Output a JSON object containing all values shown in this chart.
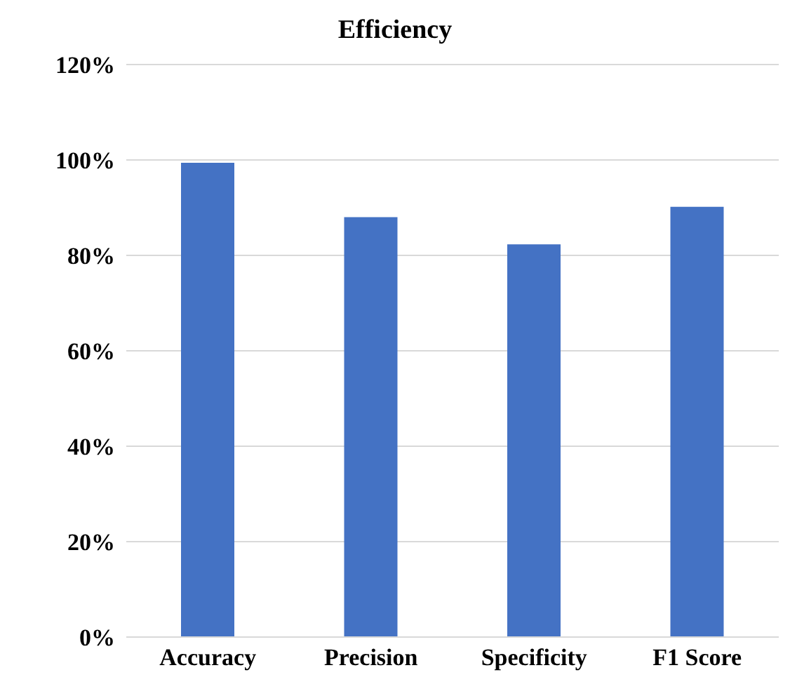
{
  "chart_data": {
    "type": "bar",
    "title": "Efficiency",
    "categories": [
      "Accuracy",
      "Precision",
      "Specificity",
      "F1 Score"
    ],
    "values": [
      99.4,
      88,
      82.3,
      90.2
    ],
    "color": "#4472c4",
    "ylim": [
      0,
      120
    ],
    "yticks": [
      {
        "value": 0,
        "label": "0%"
      },
      {
        "value": 20,
        "label": "20%"
      },
      {
        "value": 40,
        "label": "40%"
      },
      {
        "value": 60,
        "label": "60%"
      },
      {
        "value": 80,
        "label": "80%"
      },
      {
        "value": 100,
        "label": "100%"
      },
      {
        "value": 120,
        "label": "120%"
      }
    ],
    "grid": "y"
  }
}
